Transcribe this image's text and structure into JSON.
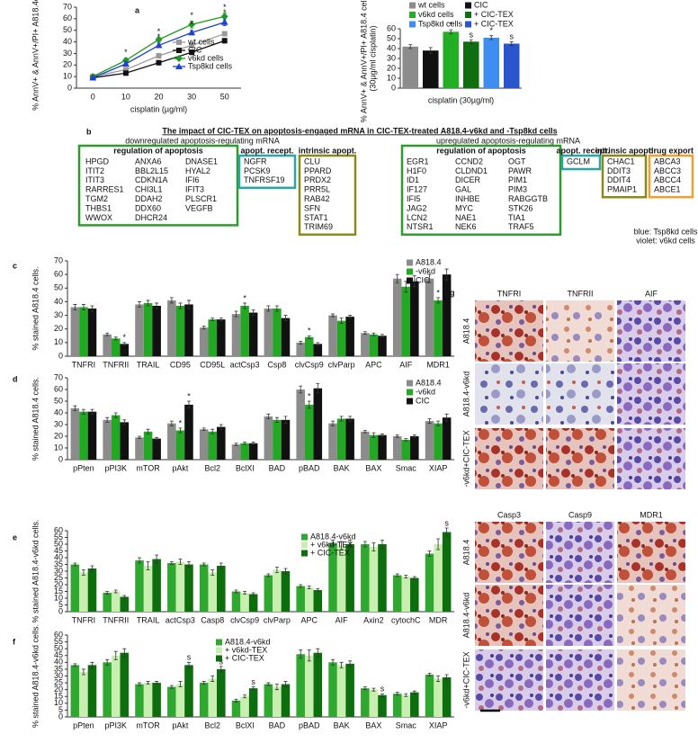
{
  "chart_data": [
    {
      "type": "line",
      "panel": "a",
      "ylabel": "% AnnV+ & AnnV+/PI+ A818.4cells",
      "xlabel": "cisplatin (µg/ml)",
      "categories": [
        "0",
        "10",
        "20",
        "30",
        "50"
      ],
      "ylim": [
        0,
        70
      ],
      "yticks": [
        0,
        10,
        20,
        30,
        40,
        50,
        60,
        70
      ],
      "series": [
        {
          "name": "wt cells",
          "color": "#9a9a9a",
          "marker": "square",
          "values": [
            10,
            16,
            28,
            37,
            47
          ],
          "errors": [
            1,
            1,
            1,
            2,
            2
          ]
        },
        {
          "name": "CIC",
          "color": "#111111",
          "marker": "square",
          "values": [
            9,
            13,
            22,
            31,
            41
          ],
          "errors": [
            1,
            1,
            1,
            2,
            2
          ]
        },
        {
          "name": "v6kd cells",
          "color": "#1f9a1f",
          "marker": "diamond",
          "values": [
            10,
            24,
            42,
            55,
            62
          ],
          "errors": [
            1,
            2,
            2,
            3,
            3
          ],
          "marks": [
            null,
            "*",
            "*",
            "*",
            "*"
          ]
        },
        {
          "name": "Tsp8kd cells",
          "color": "#2040d0",
          "marker": "triangle",
          "values": [
            9,
            21,
            37,
            48,
            57
          ],
          "errors": [
            1,
            2,
            2,
            2,
            3
          ],
          "marks": [
            null,
            null,
            "*",
            "*",
            "*"
          ]
        }
      ]
    },
    {
      "type": "bar",
      "ylabel": [
        "% AnnV+ & AnnV+/PI+ A818.4 cells",
        "(30µg/ml cisplatin)"
      ],
      "xlabel": "cisplatin (30µg/ml)",
      "ylim": [
        0,
        60
      ],
      "yticks": [
        0,
        10,
        20,
        30,
        40,
        50,
        60
      ],
      "series": [
        {
          "name": "wt cells",
          "color": "#8c8c8c",
          "values": [
            42
          ],
          "errors": [
            2
          ]
        },
        {
          "name": "CIC",
          "color": "#111111",
          "values": [
            38
          ],
          "errors": [
            3
          ]
        },
        {
          "name": "v6kd cells",
          "color": "#22b022",
          "values": [
            57
          ],
          "errors": [
            2
          ],
          "marks": [
            "*"
          ]
        },
        {
          "name": "+ CIC-TEX",
          "color": "#0f6e0f",
          "values": [
            47
          ],
          "errors": [
            2
          ],
          "marks": [
            "s"
          ]
        },
        {
          "name": "Tsp8kd cells",
          "color": "#3d8ef0",
          "values": [
            51
          ],
          "errors": [
            2
          ],
          "marks": [
            "*"
          ]
        },
        {
          "name": "+ CIC-TEX",
          "color": "#2a55cc",
          "values": [
            45
          ],
          "errors": [
            2
          ],
          "marks": [
            "s"
          ]
        }
      ]
    },
    {
      "type": "bar",
      "panel": "c",
      "ylabel": "% stained A818.4 cells.",
      "categories": [
        "TNFRI",
        "TNFRII",
        "TRAIL",
        "CD95",
        "CD95L",
        "actCsp3",
        "Csp8",
        "clvCsp9",
        "clvParp",
        "APC",
        "AIF",
        "MDR1"
      ],
      "ylim": [
        0,
        70
      ],
      "yticks": [
        0,
        10,
        20,
        30,
        40,
        50,
        60,
        70
      ],
      "series": [
        {
          "name": "A818.4",
          "color": "#8c8c8c",
          "values": [
            36,
            16,
            38,
            41,
            21,
            31,
            35,
            10,
            30,
            17,
            57,
            57
          ],
          "errors": [
            2,
            1,
            2,
            2,
            1,
            2,
            2,
            1,
            1,
            1,
            3,
            3
          ]
        },
        {
          "name": "-v6kd",
          "color": "#22a822",
          "values": [
            36,
            13,
            39,
            37,
            27,
            37,
            35,
            14,
            26,
            16,
            51,
            41
          ],
          "errors": [
            2,
            1,
            2,
            2,
            1,
            2,
            2,
            1,
            2,
            1,
            4,
            2
          ],
          "marks": [
            null,
            null,
            null,
            null,
            null,
            "*",
            null,
            "*",
            null,
            null,
            null,
            "*"
          ]
        },
        {
          "name": "CIC",
          "color": "#111111",
          "values": [
            35,
            9,
            37,
            38,
            27,
            32,
            28,
            9,
            29,
            15,
            55,
            60
          ],
          "errors": [
            2,
            1,
            2,
            3,
            1,
            2,
            2,
            1,
            1,
            1,
            4,
            4
          ],
          "marks": [
            null,
            "*",
            null,
            null,
            null,
            null,
            null,
            null,
            null,
            null,
            null,
            null
          ]
        }
      ]
    },
    {
      "type": "bar",
      "panel": "d",
      "ylabel": "% stained A818.4 cells.",
      "categories": [
        "pPten",
        "pPI3K",
        "mTOR",
        "pAkt",
        "Bcl2",
        "BclXl",
        "BAD",
        "pBAD",
        "BAK",
        "BAX",
        "Smac",
        "XIAP"
      ],
      "ylim": [
        0,
        70
      ],
      "yticks": [
        0,
        10,
        20,
        30,
        40,
        50,
        60,
        70
      ],
      "series": [
        {
          "name": "A818.4",
          "color": "#8c8c8c",
          "values": [
            44,
            34,
            19,
            31,
            26,
            13,
            37,
            60,
            31,
            24,
            20,
            33
          ],
          "errors": [
            2,
            2,
            1,
            2,
            1,
            1,
            2,
            3,
            2,
            1,
            1,
            2
          ]
        },
        {
          "name": "-v6kd",
          "color": "#22a822",
          "values": [
            41,
            38,
            24,
            25,
            24,
            14,
            34,
            47,
            35,
            21,
            17,
            31
          ],
          "errors": [
            2,
            2,
            2,
            2,
            2,
            1,
            2,
            3,
            2,
            2,
            1,
            2
          ],
          "marks": [
            null,
            null,
            null,
            "*",
            null,
            null,
            null,
            "*",
            null,
            null,
            null,
            null
          ]
        },
        {
          "name": "CIC",
          "color": "#111111",
          "values": [
            41,
            32,
            18,
            47,
            28,
            14,
            34,
            61,
            35,
            21,
            20,
            36
          ],
          "errors": [
            2,
            2,
            1,
            3,
            2,
            1,
            3,
            4,
            2,
            1,
            1,
            3
          ],
          "marks": [
            null,
            null,
            null,
            "*",
            null,
            null,
            null,
            null,
            null,
            null,
            null,
            null
          ]
        }
      ]
    },
    {
      "type": "bar",
      "panel": "e",
      "ylabel": "% stained A818.4-v6kd cells.",
      "categories": [
        "TNFRI",
        "TNFRII",
        "TRAIL",
        "actCsp3",
        "Casp8",
        "clvCsp9",
        "clvParp",
        "APC",
        "AIF",
        "Axin2",
        "cytochC",
        "MDR"
      ],
      "ylim": [
        0,
        60
      ],
      "yticks": [
        0,
        5,
        10,
        15,
        20,
        25,
        30,
        35,
        40,
        45,
        50,
        55,
        60
      ],
      "series": [
        {
          "name": "A818.4-v6kd",
          "color": "#2fa82f",
          "values": [
            35,
            14,
            38,
            36,
            35,
            15,
            27,
            19,
            51,
            50,
            27,
            43
          ],
          "errors": [
            1,
            1,
            2,
            1,
            1,
            1,
            1,
            1,
            2,
            2,
            1,
            2
          ]
        },
        {
          "name": "+ v6kd-TEX",
          "color": "#c8eeb0",
          "values": [
            29,
            15,
            34,
            37,
            29,
            14,
            31,
            18,
            49,
            48,
            26,
            50
          ],
          "errors": [
            2,
            1,
            3,
            2,
            2,
            1,
            2,
            1,
            3,
            3,
            1,
            4
          ]
        },
        {
          "name": "+ CIC-TEX",
          "color": "#0c6e0c",
          "values": [
            32,
            11,
            39,
            35,
            34,
            13,
            30,
            16,
            50,
            50,
            25,
            59
          ],
          "errors": [
            2,
            1,
            3,
            2,
            2,
            1,
            2,
            1,
            3,
            3,
            1,
            3
          ],
          "marks": [
            null,
            null,
            null,
            null,
            null,
            null,
            null,
            null,
            null,
            null,
            null,
            "s"
          ]
        }
      ]
    },
    {
      "type": "bar",
      "panel": "f",
      "ylabel": "% stained A818.4-v6kd cells.",
      "categories": [
        "pPten",
        "pPI3K",
        "mTOR",
        "pAkt",
        "Bcl2",
        "BclXl",
        "BAD",
        "pBAD",
        "BAK",
        "BAX",
        "Smac",
        "XIAP"
      ],
      "ylim": [
        0,
        60
      ],
      "yticks": [
        0,
        5,
        10,
        15,
        20,
        25,
        30,
        35,
        40,
        45,
        50,
        55,
        60
      ],
      "series": [
        {
          "name": "A818.4-v6kd",
          "color": "#2fa82f",
          "values": [
            38,
            40,
            24,
            22,
            25,
            12,
            24,
            46,
            40,
            21,
            17,
            31
          ],
          "errors": [
            1,
            2,
            1,
            1,
            1,
            1,
            1,
            3,
            2,
            1,
            1,
            1
          ]
        },
        {
          "name": "+ v6kd-TEX",
          "color": "#c8eeb0",
          "values": [
            33,
            45,
            25,
            24,
            28,
            15,
            22,
            45,
            38,
            20,
            16,
            28
          ],
          "errors": [
            2,
            3,
            1,
            2,
            2,
            1,
            2,
            4,
            2,
            1,
            1,
            2
          ]
        },
        {
          "name": "+ CIC-TEX",
          "color": "#0c6e0c",
          "values": [
            38,
            47,
            25,
            38,
            35,
            21,
            24,
            47,
            39,
            16,
            18,
            29
          ],
          "errors": [
            2,
            3,
            1,
            2,
            2,
            1,
            2,
            3,
            2,
            1,
            1,
            2
          ],
          "marks": [
            null,
            null,
            null,
            "s",
            "s",
            "s",
            null,
            null,
            null,
            "s",
            null,
            null
          ]
        }
      ]
    }
  ],
  "panel_b": {
    "panel": "b",
    "title": "The impact of CIC-TEX on apoptosis-engaged mRNA in CIC-TEX-treated A818.4-v6kd and -Tsp8kd cells",
    "sides": [
      {
        "heading": "downregulated apoptosis-regulating mRNA",
        "groups": [
          {
            "title": "regulation of apoptosis",
            "color": "#2f9a2f",
            "columns": [
              {
                "color": "#1f30c8",
                "genes": [
                  "HPGD",
                  "ITIT2",
                  "ITIT3",
                  "RARRES1",
                  "TGM2",
                  "THBS1",
                  "WWOX"
                ]
              },
              {
                "color": "#7a2aa8",
                "genes": [
                  "ANXA6",
                  "BBL2L15",
                  "CDKN1A",
                  "CHI3L1",
                  "DDAH2",
                  "DDX60",
                  "DHCR24"
                ]
              },
              {
                "color": "#7a2aa8",
                "genes": [
                  "DNASE1",
                  "HYAL2",
                  "IFI6",
                  "IFIT3",
                  "PLSCR1",
                  "VEGFB"
                ]
              }
            ]
          },
          {
            "title": "apopt. recept.",
            "color": "#2aa6a6",
            "columns": [
              {
                "color": "#7a2aa8",
                "genes": [
                  "NGFR",
                  "PCSK9",
                  "TNFRSF19"
                ]
              }
            ]
          },
          {
            "title": "intrinsic apopt.",
            "color": "#8a8a1a",
            "columns": [
              {
                "color": "#7a2aa8",
                "genes": [
                  "CLU",
                  "PPARD",
                  "PRDX2",
                  "PRR5L",
                  "RAB42",
                  "SFN",
                  "STAT1",
                  "TRIM69"
                ]
              }
            ]
          }
        ]
      },
      {
        "heading": "upregulated apoptosis-regulating mRNA",
        "groups": [
          {
            "title": "regulation of apoptosis",
            "color": "#2f9a2f",
            "columns": [
              {
                "color": "#1f30c8",
                "genes": [
                  "EGR1",
                  "H1F0",
                  "ID1",
                  "IF127",
                  "IFI5",
                  "JAG2",
                  "LCN2",
                  "NTSR1"
                ]
              },
              {
                "color": "#7a2aa8",
                "genes": [
                  "CCND2",
                  "CLDND1",
                  "DICER",
                  "GAL",
                  "INHBE",
                  "MYC",
                  "NAE1",
                  "NEK6"
                ]
              },
              {
                "color": "#7a2aa8",
                "genes": [
                  "OGT",
                  "PAWR",
                  "PIM1",
                  "PIM3",
                  "RABGGTB",
                  "STK26",
                  "TIA1",
                  "TRAF5"
                ]
              }
            ]
          },
          {
            "title": "apopt. recept.",
            "color": "#2aa6a6",
            "columns": [
              {
                "color": "#7a2aa8",
                "genes": [
                  "GCLM"
                ]
              }
            ]
          },
          {
            "title": "intrinsic apopt.",
            "color": "#8a8a1a",
            "columns": [
              {
                "color": "#7a2aa8",
                "genes": [
                  "CHAC1",
                  "DDIT3",
                  "DDIT4",
                  "PMAIP1"
                ]
              }
            ]
          },
          {
            "title": "drug export",
            "color": "#f0a030",
            "columns": [
              {
                "color": "#7a2aa8",
                "genes": [
                  "ABCA3",
                  "ABCC3",
                  "ABCC4",
                  "ABCE1"
                ]
              }
            ]
          }
        ]
      }
    ],
    "legend": [
      {
        "text": "blue: Tsp8kd cells",
        "color": "#1f30c8"
      },
      {
        "text": "violet: v6kd cells",
        "color": "#7a2aa8"
      }
    ]
  },
  "panel_g": {
    "panel": "g",
    "blocks": [
      {
        "columns": [
          "TNFRI",
          "TNFRII",
          "AIF"
        ],
        "rows": [
          {
            "text": "A818.4",
            "color": "#111111"
          },
          {
            "text": "A818.4-v6kd",
            "color": "#1f9a1f"
          },
          {
            "text": "-v6kd+CIC-TEX",
            "color": "#1f9a1f"
          }
        ]
      },
      {
        "columns": [
          "Casp3",
          "Casp9",
          "MDR1"
        ],
        "rows": [
          {
            "text": "A818.4",
            "color": "#111111"
          },
          {
            "text": "A818.4-v6kd",
            "color": "#1f9a1f"
          },
          {
            "text": "-v6kd+CIC-TEX",
            "color": "#1f9a1f"
          }
        ]
      }
    ]
  }
}
